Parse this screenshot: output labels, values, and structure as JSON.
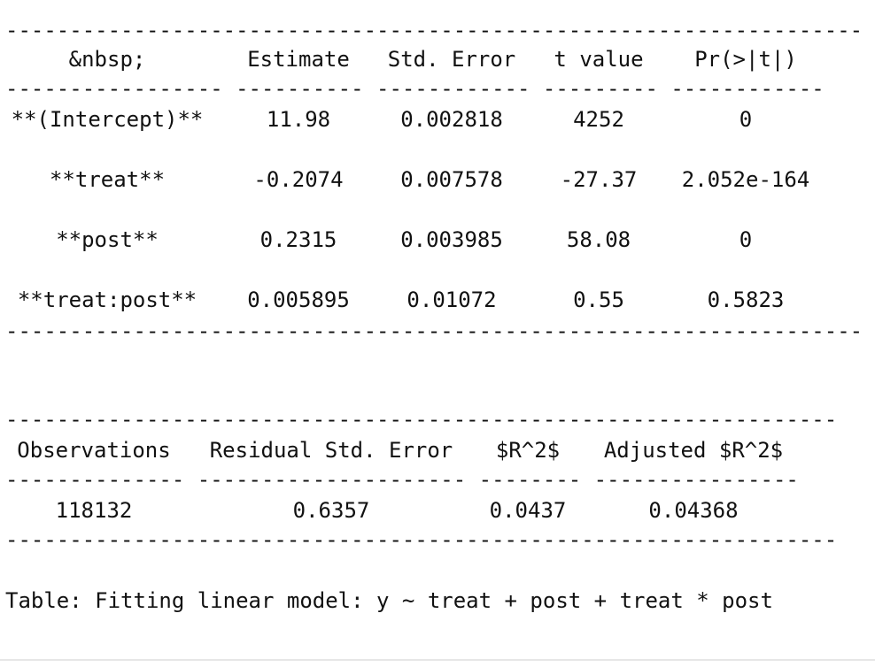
{
  "table1": {
    "headers": [
      "&nbsp;",
      "Estimate",
      "Std. Error",
      "t value",
      "Pr(>|t|)"
    ],
    "rule_top": "-------------------------------------------------------------------",
    "rule_mid": "----------------- ---------- ------------ --------- ------------",
    "rule_bottom": "-------------------------------------------------------------------",
    "rows": [
      [
        "**(Intercept)**",
        "11.98",
        "0.002818",
        "4252",
        "0"
      ],
      [
        "**treat**",
        "-0.2074",
        "0.007578",
        "-27.37",
        "2.052e-164"
      ],
      [
        "**post**",
        "0.2315",
        "0.003985",
        "58.08",
        "0"
      ],
      [
        "**treat:post**",
        "0.005895",
        "0.01072",
        "0.55",
        "0.5823"
      ]
    ]
  },
  "table2": {
    "headers": [
      "Observations",
      "Residual Std. Error",
      "$R^2$",
      "Adjusted $R^2$"
    ],
    "rule_top": "-----------------------------------------------------------------",
    "rule_mid": "-------------- --------------------- -------- ----------------",
    "rule_bottom": "-----------------------------------------------------------------",
    "rows": [
      [
        "118132",
        "0.6357",
        "0.0437",
        "0.04368"
      ]
    ]
  },
  "caption": "Table: Fitting linear model: y ~ treat + post + treat * post"
}
